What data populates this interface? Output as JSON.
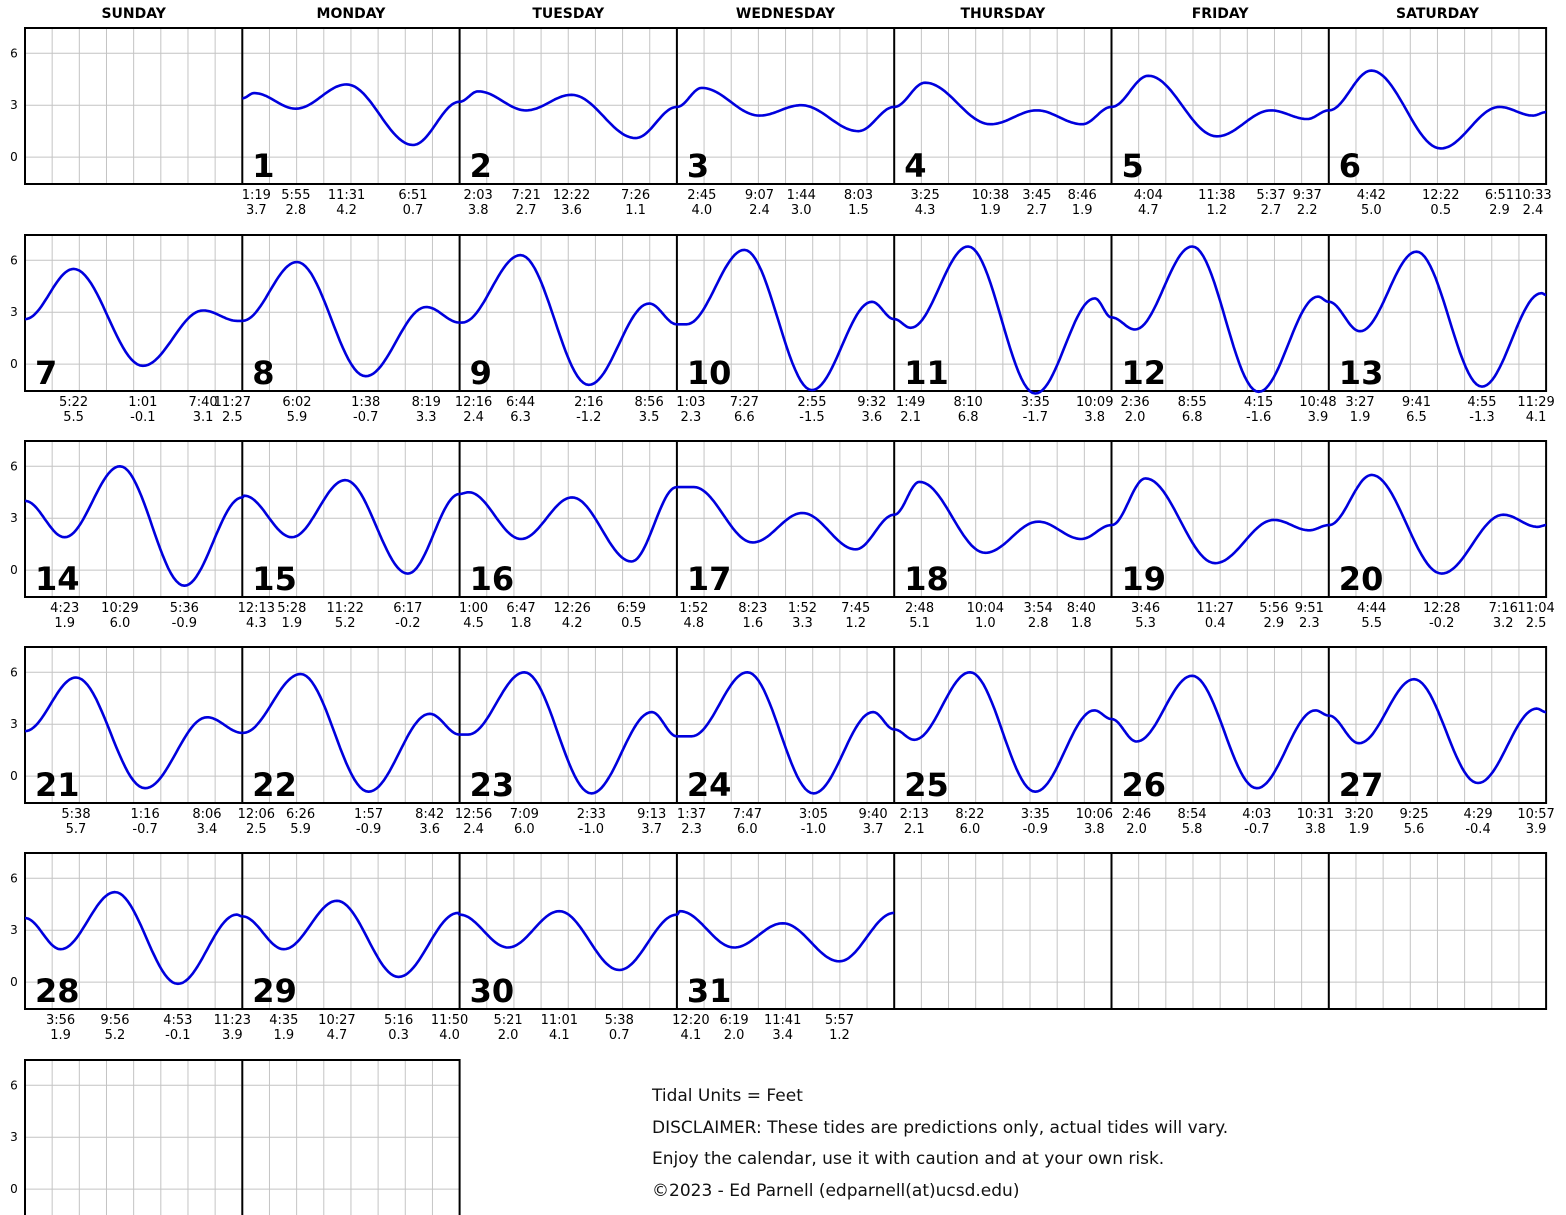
{
  "chart_data": {
    "type": "line",
    "title": "",
    "units_label": "Tidal Units = Feet",
    "weekdays": [
      "SUNDAY",
      "MONDAY",
      "TUESDAY",
      "WEDNESDAY",
      "THURSDAY",
      "FRIDAY",
      "SATURDAY"
    ],
    "yticks": [
      6,
      3,
      0
    ],
    "ylim": [
      -2.0,
      7.0
    ],
    "grid": true,
    "line_color": "#0000dd",
    "first_weekday_index": 1,
    "days_in_month": 31,
    "weeks": 6,
    "days": [
      {
        "day": 1,
        "start": 3.4,
        "end": 3.2,
        "tides": [
          [
            "1:19",
            "3.7"
          ],
          [
            "5:55",
            "2.8"
          ],
          [
            "11:31",
            "4.2"
          ],
          [
            "6:51",
            "0.7"
          ]
        ]
      },
      {
        "day": 2,
        "start": 3.2,
        "end": 2.9,
        "tides": [
          [
            "2:03",
            "3.8"
          ],
          [
            "7:21",
            "2.7"
          ],
          [
            "12:22",
            "3.6"
          ],
          [
            "7:26",
            "1.1"
          ]
        ]
      },
      {
        "day": 3,
        "start": 2.9,
        "end": 2.9,
        "tides": [
          [
            "2:45",
            "4.0"
          ],
          [
            "9:07",
            "2.4"
          ],
          [
            "1:44",
            "3.0"
          ],
          [
            "8:03",
            "1.5"
          ]
        ]
      },
      {
        "day": 4,
        "start": 2.9,
        "end": 2.9,
        "tides": [
          [
            "3:25",
            "4.3"
          ],
          [
            "10:38",
            "1.9"
          ],
          [
            "3:45",
            "2.7"
          ],
          [
            "8:46",
            "1.9"
          ]
        ]
      },
      {
        "day": 5,
        "start": 2.9,
        "end": 2.7,
        "tides": [
          [
            "4:04",
            "4.7"
          ],
          [
            "11:38",
            "1.2"
          ],
          [
            "5:37",
            "2.7"
          ],
          [
            "9:37",
            "2.2"
          ]
        ]
      },
      {
        "day": 6,
        "start": 2.7,
        "end": 2.6,
        "tides": [
          [
            "4:42",
            "5.0"
          ],
          [
            "12:22",
            "0.5"
          ],
          [
            "6:51",
            "2.9"
          ],
          [
            "10:33",
            "2.4"
          ]
        ]
      },
      {
        "day": 7,
        "start": 2.6,
        "end": 2.5,
        "tides": [
          [
            "5:22",
            "5.5"
          ],
          [
            "1:01",
            "-0.1"
          ],
          [
            "7:40",
            "3.1"
          ],
          [
            "11:27",
            "2.5"
          ]
        ]
      },
      {
        "day": 8,
        "start": 2.5,
        "end": 2.4,
        "tides": [
          [
            "6:02",
            "5.9"
          ],
          [
            "1:38",
            "-0.7"
          ],
          [
            "8:19",
            "3.3"
          ]
        ]
      },
      {
        "day": 9,
        "start": 2.4,
        "end": 2.3,
        "tides": [
          [
            "12:16",
            "2.4"
          ],
          [
            "6:44",
            "6.3"
          ],
          [
            "2:16",
            "-1.2"
          ],
          [
            "8:56",
            "3.5"
          ]
        ]
      },
      {
        "day": 10,
        "start": 2.3,
        "end": 2.6,
        "tides": [
          [
            "1:03",
            "2.3"
          ],
          [
            "7:27",
            "6.6"
          ],
          [
            "2:55",
            "-1.5"
          ],
          [
            "9:32",
            "3.6"
          ]
        ]
      },
      {
        "day": 11,
        "start": 2.6,
        "end": 2.7,
        "tides": [
          [
            "1:49",
            "2.1"
          ],
          [
            "8:10",
            "6.8"
          ],
          [
            "3:35",
            "-1.7"
          ],
          [
            "10:09",
            "3.8"
          ]
        ]
      },
      {
        "day": 12,
        "start": 2.7,
        "end": 3.6,
        "tides": [
          [
            "2:36",
            "2.0"
          ],
          [
            "8:55",
            "6.8"
          ],
          [
            "4:15",
            "-1.6"
          ],
          [
            "10:48",
            "3.9"
          ]
        ]
      },
      {
        "day": 13,
        "start": 3.6,
        "end": 4.0,
        "tides": [
          [
            "3:27",
            "1.9"
          ],
          [
            "9:41",
            "6.5"
          ],
          [
            "4:55",
            "-1.3"
          ],
          [
            "11:29",
            "4.1"
          ]
        ]
      },
      {
        "day": 14,
        "start": 4.0,
        "end": 4.2,
        "tides": [
          [
            "4:23",
            "1.9"
          ],
          [
            "10:29",
            "6.0"
          ],
          [
            "5:36",
            "-0.9"
          ]
        ]
      },
      {
        "day": 15,
        "start": 4.2,
        "end": 4.4,
        "tides": [
          [
            "12:13",
            "4.3"
          ],
          [
            "5:28",
            "1.9"
          ],
          [
            "11:22",
            "5.2"
          ],
          [
            "6:17",
            "-0.2"
          ]
        ]
      },
      {
        "day": 16,
        "start": 4.4,
        "end": 4.8,
        "tides": [
          [
            "1:00",
            "4.5"
          ],
          [
            "6:47",
            "1.8"
          ],
          [
            "12:26",
            "4.2"
          ],
          [
            "6:59",
            "0.5"
          ]
        ]
      },
      {
        "day": 17,
        "start": 4.8,
        "end": 3.2,
        "tides": [
          [
            "1:52",
            "4.8"
          ],
          [
            "8:23",
            "1.6"
          ],
          [
            "1:52",
            "3.3"
          ],
          [
            "7:45",
            "1.2"
          ]
        ]
      },
      {
        "day": 18,
        "start": 3.2,
        "end": 2.6,
        "tides": [
          [
            "2:48",
            "5.1"
          ],
          [
            "10:04",
            "1.0"
          ],
          [
            "3:54",
            "2.8"
          ],
          [
            "8:40",
            "1.8"
          ]
        ]
      },
      {
        "day": 19,
        "start": 2.6,
        "end": 2.6,
        "tides": [
          [
            "3:46",
            "5.3"
          ],
          [
            "11:27",
            "0.4"
          ],
          [
            "5:56",
            "2.9"
          ],
          [
            "9:51",
            "2.3"
          ]
        ]
      },
      {
        "day": 20,
        "start": 2.6,
        "end": 2.6,
        "tides": [
          [
            "4:44",
            "5.5"
          ],
          [
            "12:28",
            "-0.2"
          ],
          [
            "7:16",
            "3.2"
          ],
          [
            "11:04",
            "2.5"
          ]
        ]
      },
      {
        "day": 21,
        "start": 2.6,
        "end": 2.5,
        "tides": [
          [
            "5:38",
            "5.7"
          ],
          [
            "1:16",
            "-0.7"
          ],
          [
            "8:06",
            "3.4"
          ]
        ]
      },
      {
        "day": 22,
        "start": 2.5,
        "end": 2.4,
        "tides": [
          [
            "12:06",
            "2.5"
          ],
          [
            "6:26",
            "5.9"
          ],
          [
            "1:57",
            "-0.9"
          ],
          [
            "8:42",
            "3.6"
          ]
        ]
      },
      {
        "day": 23,
        "start": 2.4,
        "end": 2.3,
        "tides": [
          [
            "12:56",
            "2.4"
          ],
          [
            "7:09",
            "6.0"
          ],
          [
            "2:33",
            "-1.0"
          ],
          [
            "9:13",
            "3.7"
          ]
        ]
      },
      {
        "day": 24,
        "start": 2.3,
        "end": 2.7,
        "tides": [
          [
            "1:37",
            "2.3"
          ],
          [
            "7:47",
            "6.0"
          ],
          [
            "3:05",
            "-1.0"
          ],
          [
            "9:40",
            "3.7"
          ]
        ]
      },
      {
        "day": 25,
        "start": 2.7,
        "end": 3.3,
        "tides": [
          [
            "2:13",
            "2.1"
          ],
          [
            "8:22",
            "6.0"
          ],
          [
            "3:35",
            "-0.9"
          ],
          [
            "10:06",
            "3.8"
          ]
        ]
      },
      {
        "day": 26,
        "start": 3.3,
        "end": 3.5,
        "tides": [
          [
            "2:46",
            "2.0"
          ],
          [
            "8:54",
            "5.8"
          ],
          [
            "4:03",
            "-0.7"
          ],
          [
            "10:31",
            "3.8"
          ]
        ]
      },
      {
        "day": 27,
        "start": 3.5,
        "end": 3.7,
        "tides": [
          [
            "3:20",
            "1.9"
          ],
          [
            "9:25",
            "5.6"
          ],
          [
            "4:29",
            "-0.4"
          ],
          [
            "10:57",
            "3.9"
          ]
        ]
      },
      {
        "day": 28,
        "start": 3.7,
        "end": 3.8,
        "tides": [
          [
            "3:56",
            "1.9"
          ],
          [
            "9:56",
            "5.2"
          ],
          [
            "4:53",
            "-0.1"
          ],
          [
            "11:23",
            "3.9"
          ]
        ]
      },
      {
        "day": 29,
        "start": 3.8,
        "end": 3.9,
        "tides": [
          [
            "4:35",
            "1.9"
          ],
          [
            "10:27",
            "4.7"
          ],
          [
            "5:16",
            "0.3"
          ],
          [
            "11:50",
            "4.0"
          ]
        ]
      },
      {
        "day": 30,
        "start": 3.9,
        "end": 3.9,
        "tides": [
          [
            "5:21",
            "2.0"
          ],
          [
            "11:01",
            "4.1"
          ],
          [
            "5:38",
            "0.7"
          ]
        ]
      },
      {
        "day": 31,
        "start": 3.9,
        "end": 4.0,
        "tides": [
          [
            "12:20",
            "4.1"
          ],
          [
            "6:19",
            "2.0"
          ],
          [
            "11:41",
            "3.4"
          ],
          [
            "5:57",
            "1.2"
          ]
        ]
      }
    ]
  },
  "notes": {
    "units": "Tidal Units = Feet",
    "disclaimer": "DISCLAIMER: These tides are predictions only, actual tides will vary.",
    "caution": "Enjoy the calendar, use it with caution and at your own risk.",
    "copyright": "©2023 - Ed Parnell (edparnell(at)ucsd.edu)"
  }
}
